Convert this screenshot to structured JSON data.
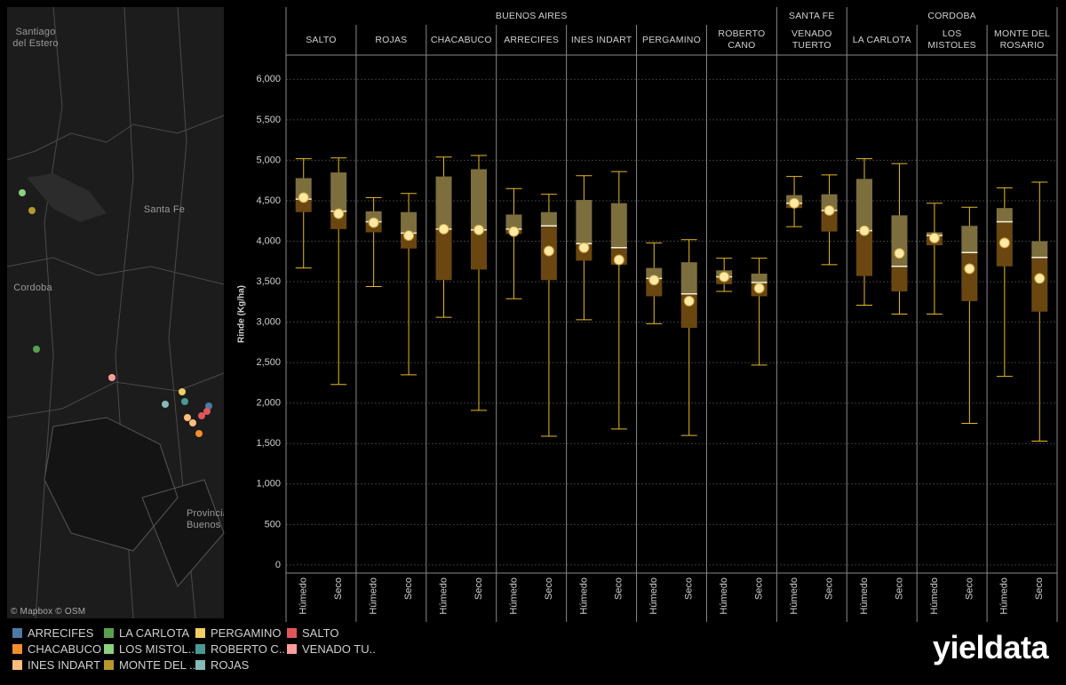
{
  "chart_data": {
    "type": "box",
    "y_label": "Rinde (Kg/ha)",
    "ylim": [
      -100,
      6300
    ],
    "yticks": [
      0,
      500,
      {
        "value": 1000,
        "label": "1,000"
      },
      {
        "value": 1500,
        "label": "1,500"
      },
      {
        "value": 2000,
        "label": "2,000"
      },
      {
        "value": 2500,
        "label": "2,500"
      },
      {
        "value": 3000,
        "label": "3,000"
      },
      {
        "value": 3500,
        "label": "3,500"
      },
      {
        "value": 4000,
        "label": "4,000"
      },
      {
        "value": 4500,
        "label": "4,500"
      },
      {
        "value": 5000,
        "label": "5,000"
      },
      {
        "value": 5500,
        "label": "5,500"
      },
      {
        "value": 6000,
        "label": "6,000"
      }
    ],
    "grid": true,
    "categories": [
      "Húmedo",
      "Seco"
    ],
    "whisker_color": "#e8b923",
    "upper_color": "#7d6e3e",
    "lower_color": "#6a4710",
    "mean_color": "#fde9a6",
    "provinces": [
      {
        "name": "BUENOS AIRES",
        "panels": [
          {
            "name": "SALTO",
            "boxes": [
              {
                "min": 3670,
                "q1": 4360,
                "median": 4520,
                "q3": 4780,
                "max": 5020,
                "mean": 4540
              },
              {
                "min": 2230,
                "q1": 4150,
                "median": 4370,
                "q3": 4850,
                "max": 5030,
                "mean": 4340
              }
            ]
          },
          {
            "name": "ROJAS",
            "boxes": [
              {
                "min": 3440,
                "q1": 4110,
                "median": 4240,
                "q3": 4370,
                "max": 4540,
                "mean": 4230
              },
              {
                "min": 2350,
                "q1": 3910,
                "median": 4100,
                "q3": 4360,
                "max": 4590,
                "mean": 4070
              }
            ]
          },
          {
            "name": "CHACABUCO",
            "boxes": [
              {
                "min": 3060,
                "q1": 3520,
                "median": 4150,
                "q3": 4800,
                "max": 5040,
                "mean": 4150
              },
              {
                "min": 1910,
                "q1": 3650,
                "median": 4140,
                "q3": 4890,
                "max": 5060,
                "mean": 4140
              }
            ]
          },
          {
            "name": "ARRECIFES",
            "boxes": [
              {
                "min": 3290,
                "q1": 4090,
                "median": 4150,
                "q3": 4330,
                "max": 4650,
                "mean": 4120
              },
              {
                "min": 1590,
                "q1": 3520,
                "median": 4190,
                "q3": 4360,
                "max": 4580,
                "mean": 3880
              }
            ]
          },
          {
            "name": "INES INDART",
            "boxes": [
              {
                "min": 3030,
                "q1": 3760,
                "median": 3970,
                "q3": 4510,
                "max": 4810,
                "mean": 3920
              },
              {
                "min": 1680,
                "q1": 3710,
                "median": 3920,
                "q3": 4470,
                "max": 4860,
                "mean": 3770
              }
            ]
          },
          {
            "name": "PERGAMINO",
            "boxes": [
              {
                "min": 2980,
                "q1": 3320,
                "median": 3540,
                "q3": 3670,
                "max": 3980,
                "mean": 3520
              },
              {
                "min": 1600,
                "q1": 2930,
                "median": 3350,
                "q3": 3740,
                "max": 4020,
                "mean": 3260
              }
            ]
          },
          {
            "name": "ROBERTO CANO",
            "boxes": [
              {
                "min": 3380,
                "q1": 3470,
                "median": 3560,
                "q3": 3640,
                "max": 3790,
                "mean": 3560
              },
              {
                "min": 2470,
                "q1": 3320,
                "median": 3490,
                "q3": 3600,
                "max": 3790,
                "mean": 3420
              }
            ]
          }
        ]
      },
      {
        "name": "SANTA FE",
        "panels": [
          {
            "name": "VENADO TUERTO",
            "boxes": [
              {
                "min": 4180,
                "q1": 4410,
                "median": 4470,
                "q3": 4570,
                "max": 4800,
                "mean": 4470
              },
              {
                "min": 3710,
                "q1": 4120,
                "median": 4380,
                "q3": 4580,
                "max": 4820,
                "mean": 4380
              }
            ]
          }
        ]
      },
      {
        "name": "CORDOBA",
        "panels": [
          {
            "name": "LA CARLOTA",
            "boxes": [
              {
                "min": 3210,
                "q1": 3570,
                "median": 4130,
                "q3": 4770,
                "max": 5020,
                "mean": 4130
              },
              {
                "min": 3100,
                "q1": 3380,
                "median": 3690,
                "q3": 4320,
                "max": 4960,
                "mean": 3850
              }
            ]
          },
          {
            "name": "LOS MISTOLES",
            "boxes": [
              {
                "min": 3100,
                "q1": 3950,
                "median": 4070,
                "q3": 4110,
                "max": 4470,
                "mean": 4040
              },
              {
                "min": 1750,
                "q1": 3260,
                "median": 3860,
                "q3": 4190,
                "max": 4420,
                "mean": 3660
              }
            ]
          },
          {
            "name": "MONTE DEL ROSARIO",
            "boxes": [
              {
                "min": 2330,
                "q1": 3690,
                "median": 4240,
                "q3": 4410,
                "max": 4660,
                "mean": 3980
              },
              {
                "min": 1530,
                "q1": 3130,
                "median": 3800,
                "q3": 4000,
                "max": 4730,
                "mean": 3540
              }
            ]
          }
        ]
      }
    ]
  },
  "map": {
    "labels": [
      "Santiago del Estero",
      "Santa Fe",
      "Cordoba",
      "Provincia Buenos"
    ],
    "attribution": "© Mapbox © OSM"
  },
  "legend": [
    {
      "name": "ARRECIFES",
      "color": "#4e79a7"
    },
    {
      "name": "CHACABUCO",
      "color": "#f28e2b"
    },
    {
      "name": "INES INDART",
      "color": "#ffbe7d"
    },
    {
      "name": "LA CARLOTA",
      "color": "#59a14f"
    },
    {
      "name": "LOS MISTOL..",
      "color": "#8cd17d"
    },
    {
      "name": "MONTE DEL ..",
      "color": "#b6992d"
    },
    {
      "name": "PERGAMINO",
      "color": "#f1ce63"
    },
    {
      "name": "ROBERTO C..",
      "color": "#499894"
    },
    {
      "name": "ROJAS",
      "color": "#86bcb6"
    },
    {
      "name": "SALTO",
      "color": "#e15759"
    },
    {
      "name": "VENADO TU..",
      "color": "#ff9d9a"
    }
  ],
  "logo": "yieldata"
}
